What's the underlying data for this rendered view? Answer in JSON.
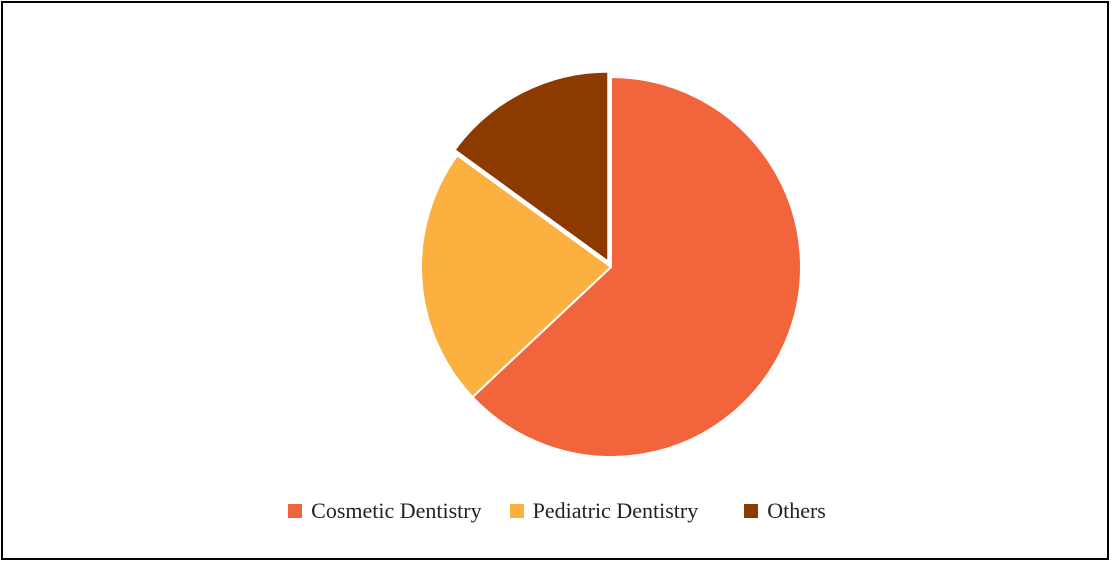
{
  "chart_data": {
    "type": "pie",
    "categories": [
      "Cosmetic Dentistry",
      "Pediatric Dentistry",
      "Others"
    ],
    "values": [
      63,
      22,
      15
    ],
    "colors": [
      "#F2653C",
      "#FBB040",
      "#8C3A00"
    ],
    "legend_position": "bottom",
    "start_angle": "12 o'clock, clockwise",
    "exploded_slices": [
      "Others"
    ]
  }
}
